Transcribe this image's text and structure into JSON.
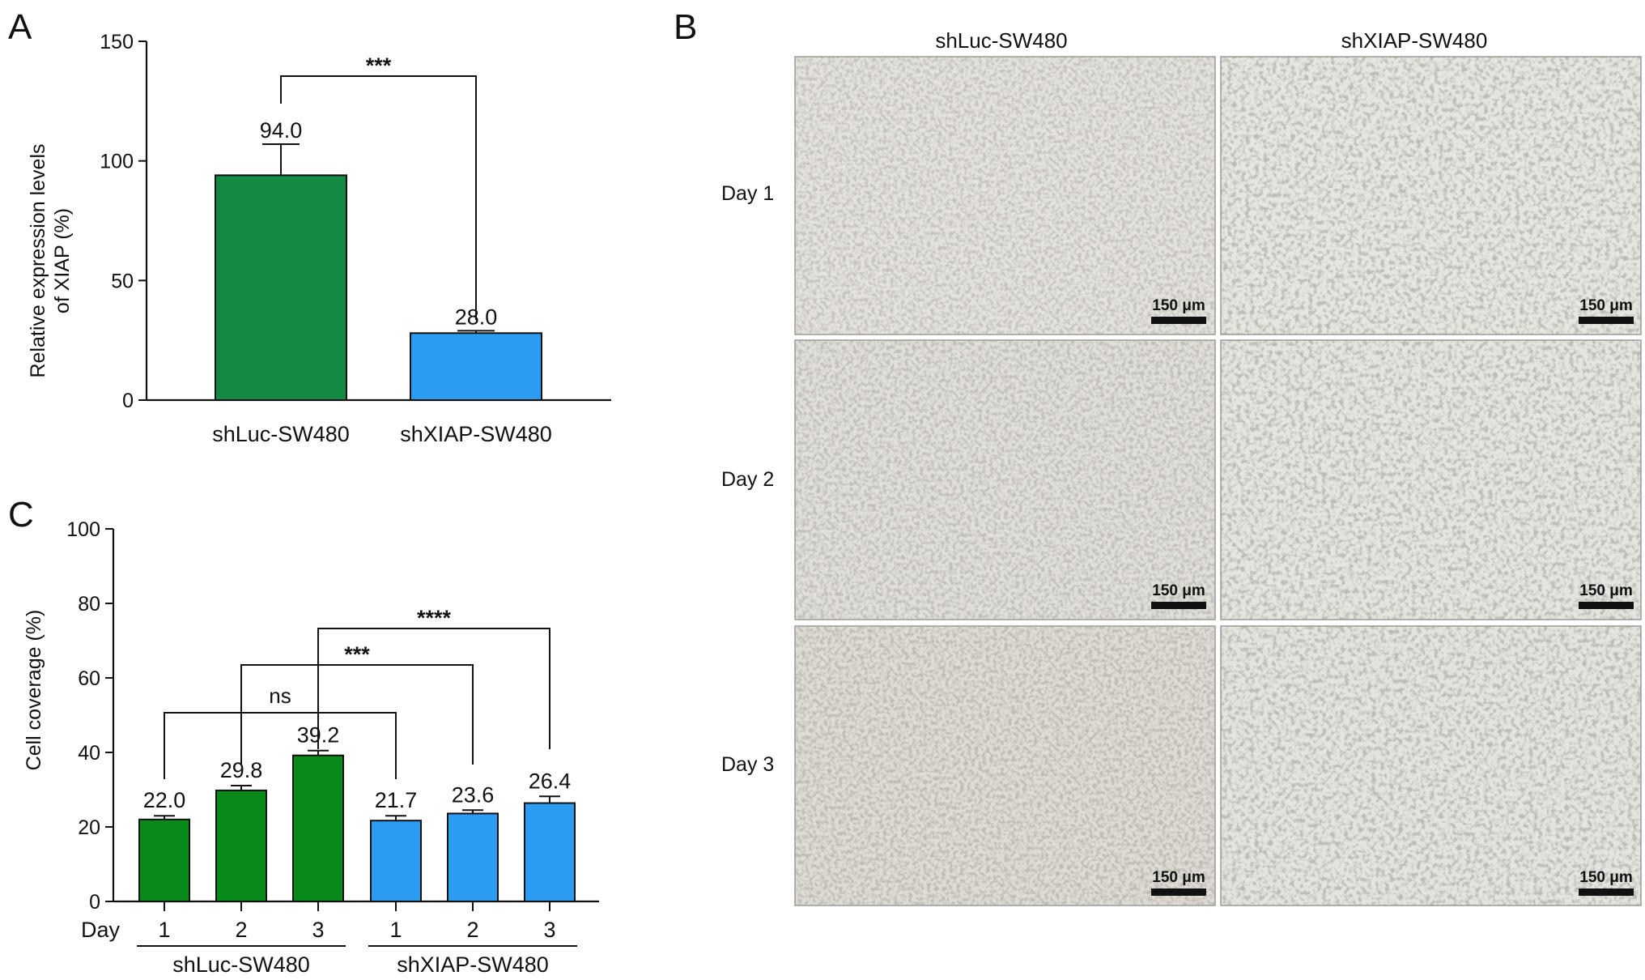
{
  "panels": {
    "a": "A",
    "b": "B",
    "c": "C"
  },
  "chart_data": [
    {
      "type": "bar",
      "panel": "A",
      "categories": [
        "shLuc-SW480",
        "shXIAP-SW480"
      ],
      "values": [
        94.0,
        28.0
      ],
      "data_labels": [
        "94.0",
        "28.0"
      ],
      "errors": [
        13,
        1
      ],
      "colors": [
        "#138a43",
        "#2b9cf2"
      ],
      "ylabel": "Relative expression levels of XIAP (%)",
      "ylabel_lines": [
        "Relative expression levels",
        "of XIAP (%)"
      ],
      "ylim": [
        0,
        150
      ],
      "yticks": [
        0,
        50,
        100,
        150
      ],
      "comparisons": [
        {
          "from": 0,
          "to": 1,
          "label": "***"
        }
      ],
      "grid": false
    },
    {
      "type": "bar",
      "panel": "C",
      "x_prefix_label": "Day",
      "categories": [
        "1",
        "2",
        "3",
        "1",
        "2",
        "3"
      ],
      "groups": [
        {
          "label": "shLuc-SW480",
          "indices": [
            0,
            1,
            2
          ],
          "color": "#088a1a"
        },
        {
          "label": "shXIAP-SW480",
          "indices": [
            3,
            4,
            5
          ],
          "color": "#2b9cf2"
        }
      ],
      "values": [
        22.0,
        29.8,
        39.2,
        21.7,
        23.6,
        26.4
      ],
      "data_labels": [
        "22.0",
        "29.8",
        "39.2",
        "21.7",
        "23.6",
        "26.4"
      ],
      "errors": [
        1.0,
        1.3,
        1.3,
        1.3,
        0.9,
        1.8
      ],
      "ylabel": "Cell coverage (%)",
      "ylim": [
        0,
        100
      ],
      "yticks": [
        0,
        20,
        40,
        60,
        80,
        100
      ],
      "comparisons": [
        {
          "from": 0,
          "to": 3,
          "label": "ns"
        },
        {
          "from": 1,
          "to": 4,
          "label": "***"
        },
        {
          "from": 2,
          "to": 5,
          "label": "****"
        }
      ],
      "grid": false
    }
  ],
  "micrographs": {
    "columns": [
      "shLuc-SW480",
      "shXIAP-SW480"
    ],
    "rows": [
      "Day 1",
      "Day 2",
      "Day 3"
    ],
    "scale_bar_label": "150 μm"
  }
}
